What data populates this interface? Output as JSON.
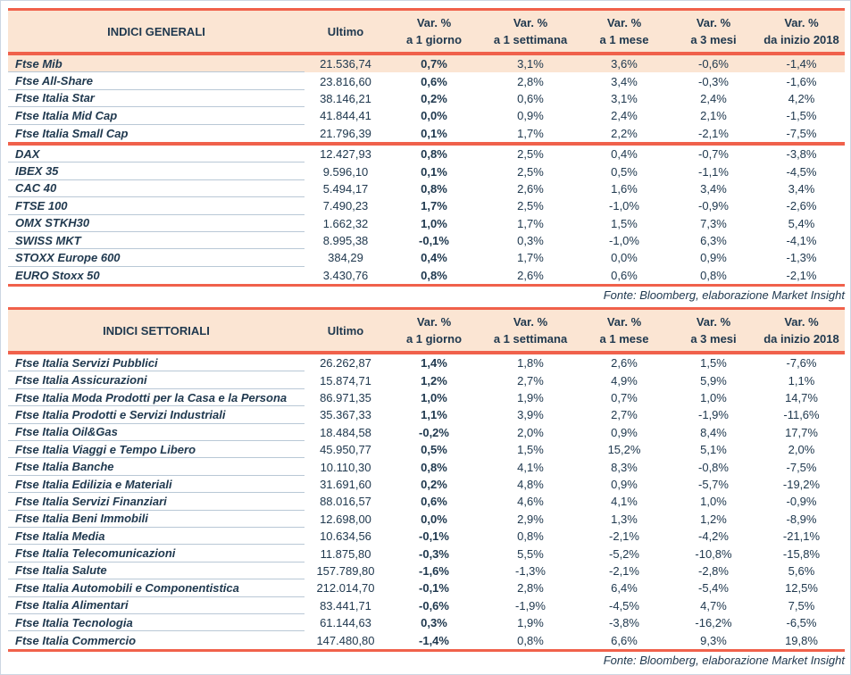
{
  "colors": {
    "accent_red": "#f0614b",
    "header_peach": "#fbe5d3",
    "text_navy": "#20394f",
    "row_line": "#b9c8d6",
    "page_border": "#ccd6e2"
  },
  "tables": [
    {
      "title": "INDICI GENERALI",
      "ultimo_label": "Ultimo",
      "var_headers": [
        {
          "line1": "Var. %",
          "line2": "a 1 giorno"
        },
        {
          "line1": "Var. %",
          "line2": "a 1 settimana"
        },
        {
          "line1": "Var. %",
          "line2": "a 1 mese"
        },
        {
          "line1": "Var. %",
          "line2": "a 3 mesi"
        },
        {
          "line1": "Var. %",
          "line2": "da inizio 2018"
        }
      ],
      "groups": [
        {
          "rows": [
            {
              "name": "Ftse Mib",
              "ultimo": "21.536,74",
              "vars": [
                "0,7%",
                "3,1%",
                "3,6%",
                "-0,6%",
                "-1,4%"
              ],
              "highlight": true
            },
            {
              "name": "Ftse All-Share",
              "ultimo": "23.816,60",
              "vars": [
                "0,6%",
                "2,8%",
                "3,4%",
                "-0,3%",
                "-1,6%"
              ],
              "highlight": false
            },
            {
              "name": "Ftse Italia Star",
              "ultimo": "38.146,21",
              "vars": [
                "0,2%",
                "0,6%",
                "3,1%",
                "2,4%",
                "4,2%"
              ],
              "highlight": false
            },
            {
              "name": "Ftse Italia Mid Cap",
              "ultimo": "41.844,41",
              "vars": [
                "0,0%",
                "0,9%",
                "2,4%",
                "2,1%",
                "-1,5%"
              ],
              "highlight": false
            },
            {
              "name": "Ftse Italia Small Cap",
              "ultimo": "21.796,39",
              "vars": [
                "0,1%",
                "1,7%",
                "2,2%",
                "-2,1%",
                "-7,5%"
              ],
              "highlight": false
            }
          ]
        },
        {
          "rows": [
            {
              "name": "DAX",
              "ultimo": "12.427,93",
              "vars": [
                "0,8%",
                "2,5%",
                "0,4%",
                "-0,7%",
                "-3,8%"
              ],
              "highlight": false
            },
            {
              "name": "IBEX 35",
              "ultimo": "9.596,10",
              "vars": [
                "0,1%",
                "2,5%",
                "0,5%",
                "-1,1%",
                "-4,5%"
              ],
              "highlight": false
            },
            {
              "name": "CAC 40",
              "ultimo": "5.494,17",
              "vars": [
                "0,8%",
                "2,6%",
                "1,6%",
                "3,4%",
                "3,4%"
              ],
              "highlight": false
            },
            {
              "name": "FTSE 100",
              "ultimo": "7.490,23",
              "vars": [
                "1,7%",
                "2,5%",
                "-1,0%",
                "-0,9%",
                "-2,6%"
              ],
              "highlight": false
            },
            {
              "name": "OMX STKH30",
              "ultimo": "1.662,32",
              "vars": [
                "1,0%",
                "1,7%",
                "1,5%",
                "7,3%",
                "5,4%"
              ],
              "highlight": false
            },
            {
              "name": "SWISS MKT",
              "ultimo": "8.995,38",
              "vars": [
                "-0,1%",
                "0,3%",
                "-1,0%",
                "6,3%",
                "-4,1%"
              ],
              "highlight": false
            },
            {
              "name": "STOXX Europe 600",
              "ultimo": "384,29",
              "vars": [
                "0,4%",
                "1,7%",
                "0,0%",
                "0,9%",
                "-1,3%"
              ],
              "highlight": false
            },
            {
              "name": "EURO Stoxx 50",
              "ultimo": "3.430,76",
              "vars": [
                "0,8%",
                "2,6%",
                "0,6%",
                "0,8%",
                "-2,1%"
              ],
              "highlight": false
            }
          ]
        }
      ],
      "fonte": "Fonte: Bloomberg, elaborazione Market Insight"
    },
    {
      "title": "INDICI SETTORIALI",
      "ultimo_label": "Ultimo",
      "var_headers": [
        {
          "line1": "Var. %",
          "line2": "a 1 giorno"
        },
        {
          "line1": "Var. %",
          "line2": "a 1 settimana"
        },
        {
          "line1": "Var. %",
          "line2": "a 1 mese"
        },
        {
          "line1": "Var. %",
          "line2": "a 3 mesi"
        },
        {
          "line1": "Var. %",
          "line2": "da inizio 2018"
        }
      ],
      "groups": [
        {
          "rows": [
            {
              "name": "Ftse Italia Servizi Pubblici",
              "ultimo": "26.262,87",
              "vars": [
                "1,4%",
                "1,8%",
                "2,6%",
                "1,5%",
                "-7,6%"
              ],
              "highlight": false
            },
            {
              "name": "Ftse Italia Assicurazioni",
              "ultimo": "15.874,71",
              "vars": [
                "1,2%",
                "2,7%",
                "4,9%",
                "5,9%",
                "1,1%"
              ],
              "highlight": false
            },
            {
              "name": "Ftse Italia Moda Prodotti per la Casa e la Persona",
              "ultimo": "86.971,35",
              "vars": [
                "1,0%",
                "1,9%",
                "0,7%",
                "1,0%",
                "14,7%"
              ],
              "highlight": false
            },
            {
              "name": "Ftse Italia Prodotti e Servizi Industriali",
              "ultimo": "35.367,33",
              "vars": [
                "1,1%",
                "3,9%",
                "2,7%",
                "-1,9%",
                "-11,6%"
              ],
              "highlight": false
            },
            {
              "name": "Ftse Italia Oil&Gas",
              "ultimo": "18.484,58",
              "vars": [
                "-0,2%",
                "2,0%",
                "0,9%",
                "8,4%",
                "17,7%"
              ],
              "highlight": false
            },
            {
              "name": "Ftse Italia Viaggi e Tempo Libero",
              "ultimo": "45.950,77",
              "vars": [
                "0,5%",
                "1,5%",
                "15,2%",
                "5,1%",
                "2,0%"
              ],
              "highlight": false
            },
            {
              "name": "Ftse Italia Banche",
              "ultimo": "10.110,30",
              "vars": [
                "0,8%",
                "4,1%",
                "8,3%",
                "-0,8%",
                "-7,5%"
              ],
              "highlight": false
            },
            {
              "name": "Ftse Italia Edilizia e Materiali",
              "ultimo": "31.691,60",
              "vars": [
                "0,2%",
                "4,8%",
                "0,9%",
                "-5,7%",
                "-19,2%"
              ],
              "highlight": false
            },
            {
              "name": "Ftse Italia Servizi Finanziari",
              "ultimo": "88.016,57",
              "vars": [
                "0,6%",
                "4,6%",
                "4,1%",
                "1,0%",
                "-0,9%"
              ],
              "highlight": false
            },
            {
              "name": "Ftse Italia Beni Immobili",
              "ultimo": "12.698,00",
              "vars": [
                "0,0%",
                "2,9%",
                "1,3%",
                "1,2%",
                "-8,9%"
              ],
              "highlight": false
            },
            {
              "name": "Ftse Italia Media",
              "ultimo": "10.634,56",
              "vars": [
                "-0,1%",
                "0,8%",
                "-2,1%",
                "-4,2%",
                "-21,1%"
              ],
              "highlight": false
            },
            {
              "name": "Ftse Italia Telecomunicazioni",
              "ultimo": "11.875,80",
              "vars": [
                "-0,3%",
                "5,5%",
                "-5,2%",
                "-10,8%",
                "-15,8%"
              ],
              "highlight": false
            },
            {
              "name": "Ftse Italia Salute",
              "ultimo": "157.789,80",
              "vars": [
                "-1,6%",
                "-1,3%",
                "-2,1%",
                "-2,8%",
                "5,6%"
              ],
              "highlight": false
            },
            {
              "name": "Ftse Italia Automobili e Componentistica",
              "ultimo": "212.014,70",
              "vars": [
                "-0,1%",
                "2,8%",
                "6,4%",
                "-5,4%",
                "12,5%"
              ],
              "highlight": false
            },
            {
              "name": "Ftse Italia Alimentari",
              "ultimo": "83.441,71",
              "vars": [
                "-0,6%",
                "-1,9%",
                "-4,5%",
                "4,7%",
                "7,5%"
              ],
              "highlight": false
            },
            {
              "name": "Ftse Italia Tecnologia",
              "ultimo": "61.144,63",
              "vars": [
                "0,3%",
                "1,9%",
                "-3,8%",
                "-16,2%",
                "-6,5%"
              ],
              "highlight": false
            },
            {
              "name": "Ftse Italia Commercio",
              "ultimo": "147.480,80",
              "vars": [
                "-1,4%",
                "0,8%",
                "6,6%",
                "9,3%",
                "19,8%"
              ],
              "highlight": false
            }
          ]
        }
      ],
      "fonte": "Fonte: Bloomberg, elaborazione Market Insight"
    }
  ]
}
